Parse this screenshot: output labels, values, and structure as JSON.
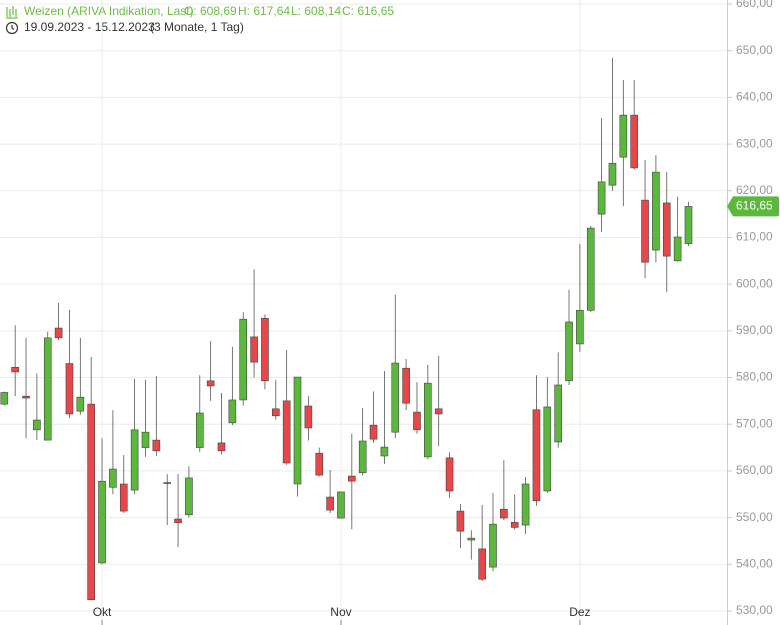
{
  "header": {
    "title": "Weizen (ARIVA Indikation, Last)",
    "quotes": [
      "O: 608,69",
      "H: 617,64",
      "L: 608,14",
      "C: 616,65"
    ],
    "range": "19.09.2023 - 15.12.2023",
    "period": "(3 Monate, 1 Tag)"
  },
  "chart_data": {
    "type": "candlestick",
    "categories": [
      null,
      null,
      null,
      null,
      null,
      null,
      null,
      null,
      null,
      "Okt",
      null,
      null,
      null,
      null,
      null,
      null,
      null,
      null,
      null,
      null,
      null,
      null,
      null,
      null,
      null,
      null,
      null,
      null,
      null,
      null,
      null,
      "Nov",
      null,
      null,
      null,
      null,
      null,
      null,
      null,
      null,
      null,
      null,
      null,
      null,
      null,
      null,
      null,
      null,
      null,
      null,
      null,
      null,
      null,
      "Dez",
      null,
      null,
      null,
      null,
      null,
      null,
      null,
      null,
      null,
      null
    ],
    "open": [
      574.3,
      582.2,
      576,
      568.8,
      566.6,
      590.6,
      583,
      572.8,
      574.3,
      540.3,
      556.5,
      557.2,
      555.9,
      565,
      566.6,
      557.5,
      549.7,
      550.6,
      565,
      579.3,
      566,
      570.3,
      575.2,
      588.7,
      592.7,
      573.3,
      575,
      557.2,
      573.9,
      563.8,
      554.4,
      549.9,
      558.9,
      559.6,
      569.8,
      563.2,
      568.3,
      582,
      572.6,
      563,
      573.3,
      562.8,
      551.4,
      545.2,
      543.3,
      539.4,
      551.8,
      549,
      548.4,
      573.1,
      555.7,
      566.2,
      579.3,
      587.2,
      594.4,
      615,
      621.2,
      627.2,
      636.2,
      618,
      607.3,
      617.4,
      605,
      608.69
    ],
    "high": [
      577,
      591.2,
      588.5,
      580.9,
      589.8,
      596,
      594.5,
      588.5,
      584.4,
      567,
      573,
      563.4,
      579.7,
      579.5,
      580.3,
      559.3,
      559.3,
      561,
      580.5,
      587.8,
      576.7,
      586.6,
      594,
      603.2,
      593.5,
      579.5,
      585.9,
      580.1,
      576,
      565,
      560.2,
      555.5,
      568,
      573.5,
      577,
      581.4,
      597.7,
      584,
      579,
      582.7,
      584.6,
      564,
      552.9,
      547.3,
      552.7,
      555.3,
      562.3,
      555,
      558.7,
      580.5,
      580.1,
      585.4,
      598.8,
      608.6,
      612.5,
      635.6,
      648.5,
      643.7,
      643.7,
      626.6,
      627.6,
      624,
      618.7,
      617.64
    ],
    "low": [
      574,
      576,
      567,
      566.6,
      566.6,
      588,
      571.3,
      572,
      532.4,
      540,
      555,
      551,
      555,
      563,
      563.2,
      548.4,
      543.7,
      550,
      564,
      575,
      563.5,
      569.8,
      574,
      580,
      577.5,
      571,
      561.3,
      554.5,
      566.5,
      558.8,
      551,
      549.8,
      547.5,
      559,
      566,
      561.5,
      567,
      573,
      568,
      562.5,
      565.3,
      554.2,
      543.5,
      541,
      536.4,
      538.5,
      549.5,
      547.4,
      546.5,
      552.5,
      555.3,
      565,
      578.4,
      585.5,
      594,
      611.2,
      620,
      616.7,
      624.5,
      601.3,
      604.7,
      598.3,
      604.8,
      608.14
    ],
    "close": [
      576.8,
      581.2,
      575.6,
      570.9,
      588.5,
      588.5,
      572.2,
      575.8,
      532.4,
      557.8,
      560.4,
      551.4,
      568.8,
      568.3,
      564.3,
      557.3,
      548.9,
      558.5,
      572.4,
      578.2,
      564.3,
      575.2,
      592.5,
      583.3,
      579.3,
      571.8,
      561.7,
      580.1,
      569.2,
      559.1,
      551.6,
      555.5,
      557.8,
      566.4,
      566.8,
      565.1,
      583.1,
      574.5,
      568.8,
      578.8,
      572.2,
      555.7,
      547.1,
      545.6,
      536.8,
      548.6,
      549.9,
      547.9,
      557.2,
      553.6,
      573.7,
      578.4,
      591.9,
      594.4,
      612,
      621.9,
      625.9,
      636.2,
      624.9,
      604.7,
      624,
      606,
      610.1,
      616.65
    ],
    "up_color": "#5cb83c",
    "down_color": "#e8474a",
    "last_price": {
      "value": 616.65,
      "label": "616,65"
    },
    "ylim": [
      528.07,
      660.86
    ],
    "yticks": [
      {
        "value": 530,
        "label": "530,00"
      },
      {
        "value": 540,
        "label": "540,00"
      },
      {
        "value": 550,
        "label": "550,00"
      },
      {
        "value": 560,
        "label": "560,00"
      },
      {
        "value": 570,
        "label": "570,00"
      },
      {
        "value": 580,
        "label": "580,00"
      },
      {
        "value": 590,
        "label": "590,00"
      },
      {
        "value": 600,
        "label": "600,00"
      },
      {
        "value": 610,
        "label": "610,00"
      },
      {
        "value": 620,
        "label": "620,00"
      },
      {
        "value": 630,
        "label": "630,00"
      },
      {
        "value": 640,
        "label": "640,00"
      },
      {
        "value": 650,
        "label": "650,00"
      },
      {
        "value": 660,
        "label": "660,00"
      }
    ],
    "grid": true
  }
}
